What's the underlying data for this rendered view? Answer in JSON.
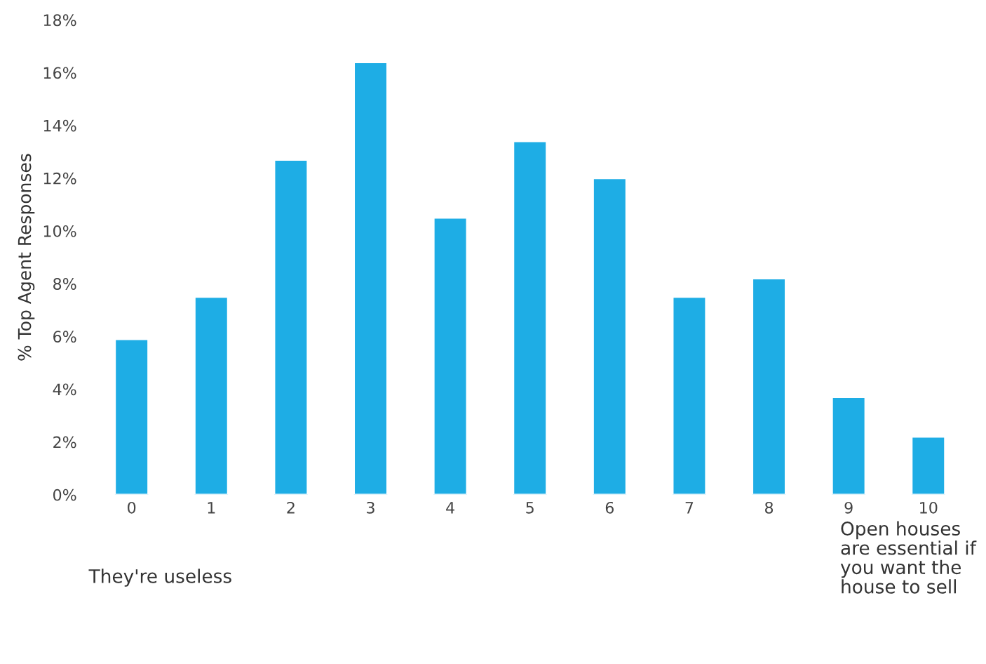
{
  "chart_data": {
    "type": "bar",
    "ylabel": "% Top Agent Responses",
    "categories": [
      "0",
      "1",
      "2",
      "3",
      "4",
      "5",
      "6",
      "7",
      "8",
      "9",
      "10"
    ],
    "values": [
      5.9,
      7.5,
      12.7,
      16.4,
      10.5,
      13.4,
      12.0,
      7.5,
      8.2,
      3.7,
      2.2
    ],
    "color": "#1eade5",
    "ylim": [
      0,
      18
    ],
    "yticks": [
      {
        "value": 0,
        "label": "0%"
      },
      {
        "value": 2,
        "label": "2%"
      },
      {
        "value": 4,
        "label": "4%"
      },
      {
        "value": 6,
        "label": "6%"
      },
      {
        "value": 8,
        "label": "8%"
      },
      {
        "value": 10,
        "label": "10%"
      },
      {
        "value": 12,
        "label": "12%"
      },
      {
        "value": 14,
        "label": "14%"
      },
      {
        "value": 16,
        "label": "16%"
      },
      {
        "value": 18,
        "label": "18%"
      }
    ],
    "annotations": [
      "They're useless",
      "Open houses\nare essential if\nyou want the\nhouse to sell"
    ],
    "grid": false
  }
}
